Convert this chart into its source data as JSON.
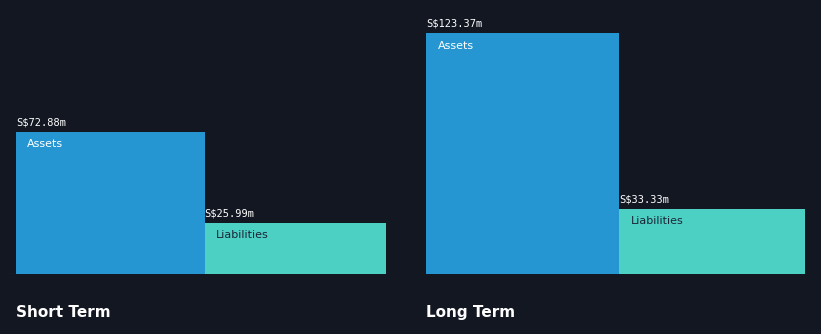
{
  "background_color": "#131722",
  "bar_color_assets": "#2596d1",
  "bar_color_liabilities": "#4DD0C4",
  "text_color_white": "#FFFFFF",
  "text_color_liabilities": "#1a2535",
  "short_term_assets": 72.88,
  "short_term_liabilities": 25.99,
  "long_term_assets": 123.37,
  "long_term_liabilities": 33.33,
  "label_assets": "Assets",
  "label_liabilities": "Liabilities",
  "label_short_term": "Short Term",
  "label_long_term": "Long Term",
  "short_term_asset_label": "S$72.88m",
  "short_term_liability_label": "S$25.99m",
  "long_term_asset_label": "S$123.37m",
  "long_term_liability_label": "S$33.33m",
  "value_fontsize": 7.5,
  "inner_label_fontsize": 8.0,
  "section_title_fontsize": 11
}
